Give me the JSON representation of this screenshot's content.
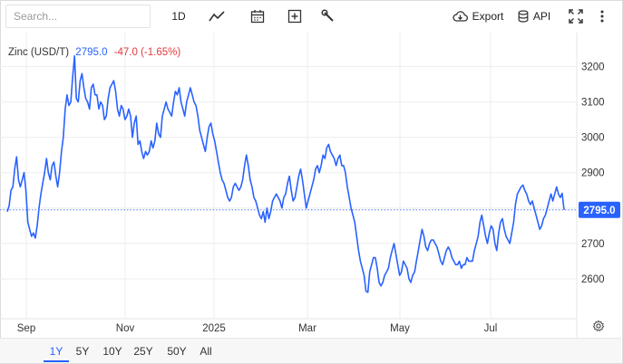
{
  "toolbar": {
    "search_placeholder": "Search...",
    "interval_label": "1D",
    "export_label": "Export",
    "api_label": "API",
    "icons": [
      "line-chart-icon",
      "calendar-icon",
      "add-compare-icon",
      "wrench-icon",
      "cloud-download-icon",
      "database-icon",
      "fullscreen-icon",
      "more-vertical-icon"
    ]
  },
  "legend": {
    "name": "Zinc (USD/T)",
    "price": "2795.0",
    "change": "-47.0 (-1.65%)"
  },
  "range_buttons": [
    "1Y",
    "5Y",
    "10Y",
    "25Y",
    "50Y",
    "All"
  ],
  "active_range": "1Y",
  "colors": {
    "line": "#2962ff",
    "negative": "#e0393e",
    "badge": "#2962ff",
    "grid": "#eeeeee"
  },
  "chart_data": {
    "type": "line",
    "title": "",
    "xlabel": "",
    "ylabel": "",
    "x_tick_labels": [
      "Sep",
      "Nov",
      "2025",
      "Mar",
      "May",
      "Jul"
    ],
    "y_tick_labels": [
      "3200",
      "3100",
      "3000",
      "2900",
      "2800",
      "2700",
      "2600"
    ],
    "ylim": [
      2530,
      3250
    ],
    "last_value_label": "2795.0",
    "grid": true,
    "series": [
      {
        "values": [
          2790,
          2807,
          2850,
          2860,
          2910,
          2945,
          2880,
          2860,
          2880,
          2900,
          2850,
          2760,
          2740,
          2720,
          2730,
          2715,
          2750,
          2800,
          2840,
          2870,
          2900,
          2940,
          2900,
          2880,
          2920,
          2930,
          2890,
          2860,
          2900,
          2960,
          3000,
          3080,
          3120,
          3090,
          3100,
          3170,
          3230,
          3110,
          3100,
          3160,
          3180,
          3140,
          3110,
          3100,
          3080,
          3140,
          3150,
          3120,
          3120,
          3080,
          3100,
          3090,
          3050,
          3060,
          3110,
          3140,
          3150,
          3160,
          3130,
          3080,
          3060,
          3090,
          3080,
          3050,
          3060,
          3080,
          3060,
          3000,
          3040,
          3060,
          2980,
          2990,
          2960,
          2940,
          2960,
          2950,
          2960,
          2990,
          2970,
          2990,
          3040,
          3010,
          3000,
          3060,
          3080,
          3100,
          3080,
          3070,
          3060,
          3100,
          3130,
          3120,
          3140,
          3100,
          3080,
          3060,
          3100,
          3120,
          3140,
          3120,
          3100,
          3090,
          3060,
          3020,
          3000,
          2980,
          2960,
          3000,
          3030,
          3040,
          3010,
          2990,
          2960,
          2930,
          2900,
          2880,
          2870,
          2850,
          2830,
          2820,
          2830,
          2860,
          2870,
          2860,
          2850,
          2860,
          2880,
          2920,
          2950,
          2920,
          2880,
          2860,
          2830,
          2820,
          2800,
          2780,
          2770,
          2790,
          2760,
          2800,
          2770,
          2790,
          2820,
          2830,
          2840,
          2830,
          2820,
          2800,
          2830,
          2840,
          2870,
          2890,
          2850,
          2820,
          2830,
          2860,
          2890,
          2910,
          2880,
          2840,
          2800,
          2820,
          2840,
          2860,
          2880,
          2910,
          2920,
          2900,
          2920,
          2950,
          2940,
          2970,
          2980,
          2960,
          2950,
          2940,
          2920,
          2940,
          2950,
          2920,
          2920,
          2900,
          2860,
          2830,
          2800,
          2780,
          2760,
          2720,
          2680,
          2650,
          2630,
          2610,
          2565,
          2562,
          2620,
          2640,
          2660,
          2660,
          2630,
          2590,
          2580,
          2590,
          2610,
          2620,
          2630,
          2660,
          2680,
          2700,
          2670,
          2640,
          2610,
          2620,
          2650,
          2640,
          2630,
          2600,
          2590,
          2610,
          2620,
          2650,
          2680,
          2710,
          2740,
          2720,
          2690,
          2680,
          2700,
          2710,
          2710,
          2700,
          2690,
          2670,
          2650,
          2640,
          2660,
          2680,
          2690,
          2680,
          2660,
          2650,
          2640,
          2640,
          2650,
          2630,
          2640,
          2640,
          2660,
          2650,
          2650,
          2650,
          2680,
          2700,
          2720,
          2760,
          2780,
          2750,
          2720,
          2700,
          2730,
          2750,
          2740,
          2700,
          2680,
          2730,
          2760,
          2770,
          2740,
          2720,
          2710,
          2700,
          2730,
          2760,
          2810,
          2840,
          2850,
          2860,
          2865,
          2850,
          2840,
          2820,
          2810,
          2820,
          2800,
          2780,
          2760,
          2740,
          2750,
          2770,
          2780,
          2800,
          2820,
          2840,
          2820,
          2840,
          2860,
          2840,
          2830,
          2842,
          2795
        ]
      }
    ]
  }
}
